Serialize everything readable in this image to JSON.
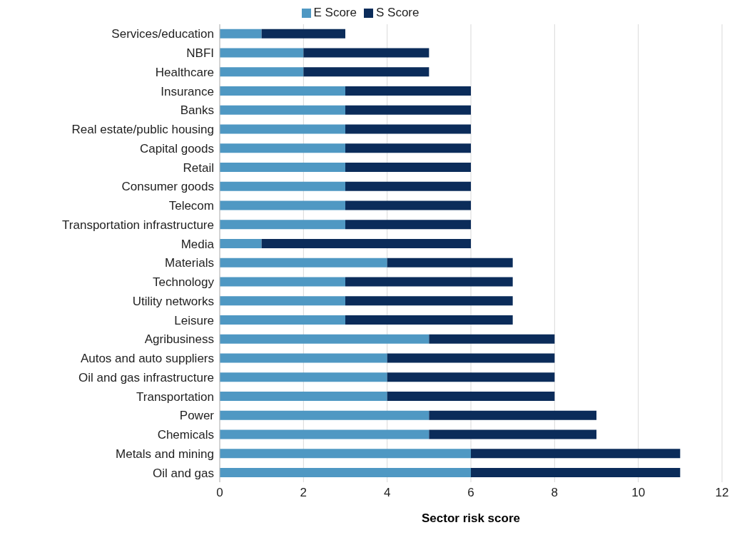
{
  "chart_data": {
    "type": "bar",
    "orientation": "horizontal",
    "stacked": true,
    "xlabel": "Sector risk score",
    "categories": [
      "Services/education",
      "NBFI",
      "Healthcare",
      "Insurance",
      "Banks",
      "Real estate/public housing",
      "Capital goods",
      "Retail",
      "Consumer goods",
      "Telecom",
      "Transportation infrastructure",
      "Media",
      "Materials",
      "Technology",
      "Utility networks",
      "Leisure",
      "Agribusiness",
      "Autos and auto suppliers",
      "Oil and gas infrastructure",
      "Transportation",
      "Power",
      "Chemicals",
      "Metals and mining",
      "Oil and gas"
    ],
    "series": [
      {
        "name": "E Score",
        "color": "#4f98c3",
        "values": [
          1,
          2,
          2,
          3,
          3,
          3,
          3,
          3,
          3,
          3,
          3,
          1,
          4,
          3,
          3,
          3,
          5,
          4,
          4,
          4,
          5,
          5,
          6,
          6
        ]
      },
      {
        "name": "S Score",
        "color": "#0b2c5a",
        "values": [
          2,
          3,
          3,
          3,
          3,
          3,
          3,
          3,
          3,
          3,
          3,
          5,
          3,
          4,
          4,
          4,
          3,
          4,
          4,
          4,
          4,
          4,
          5,
          5
        ]
      }
    ],
    "xlim": [
      0,
      12
    ],
    "xticks": [
      0,
      2,
      4,
      6,
      8,
      10,
      12
    ],
    "grid": "x",
    "legend": "top"
  }
}
